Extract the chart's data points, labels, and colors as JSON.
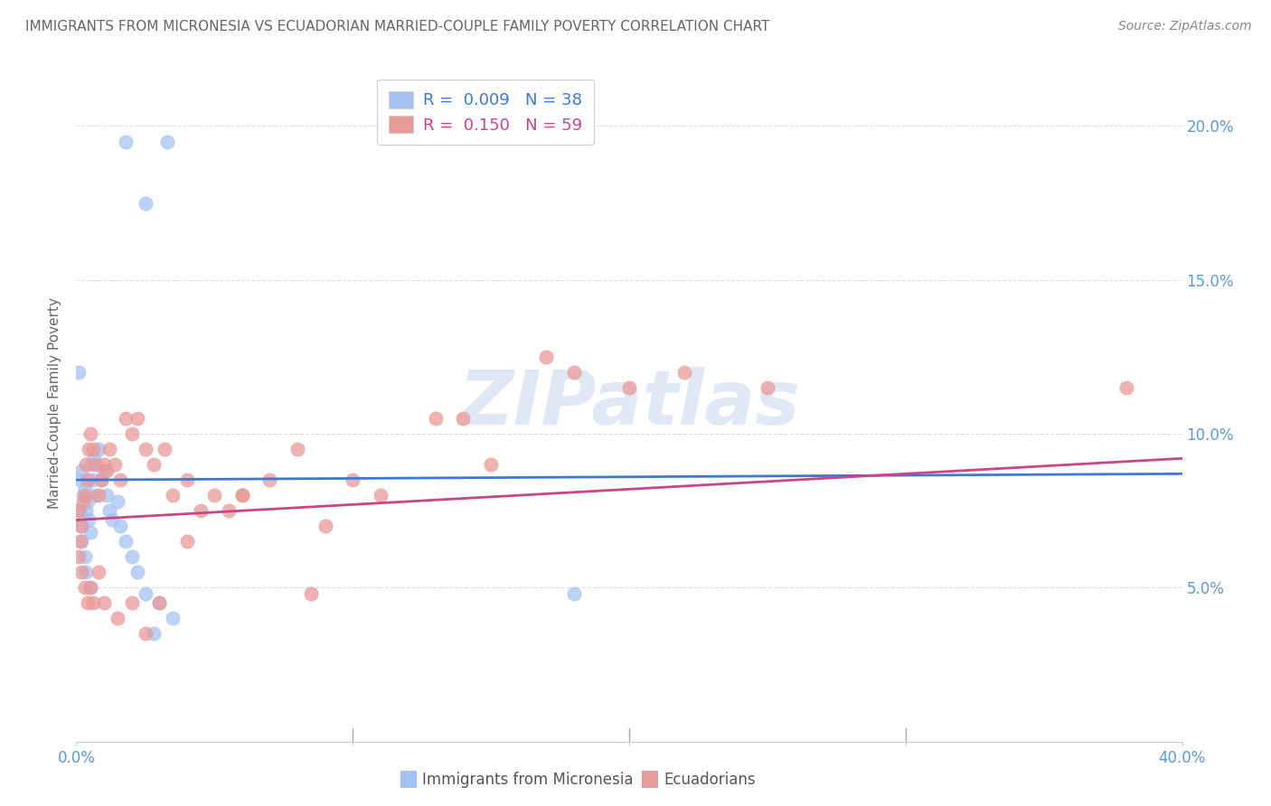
{
  "title": "IMMIGRANTS FROM MICRONESIA VS ECUADORIAN MARRIED-COUPLE FAMILY POVERTY CORRELATION CHART",
  "source": "Source: ZipAtlas.com",
  "ylabel": "Married-Couple Family Poverty",
  "legend_label1": "Immigrants from Micronesia",
  "legend_label2": "Ecuadorians",
  "blue_R": "0.009",
  "blue_N": "38",
  "pink_R": "0.150",
  "pink_N": "59",
  "blue_color": "#a4c2f4",
  "pink_color": "#ea9999",
  "blue_line_color": "#3c78d8",
  "pink_line_color": "#cc4488",
  "xlim": [
    0.0,
    40.0
  ],
  "ylim": [
    0.0,
    22.0
  ],
  "yticks": [
    5.0,
    10.0,
    15.0,
    20.0
  ],
  "xticks": [
    0.0,
    10.0,
    20.0,
    30.0,
    40.0
  ],
  "blue_line_y0": 8.5,
  "blue_line_y1": 8.7,
  "pink_line_y0": 7.2,
  "pink_line_y1": 9.2,
  "blue_scatter_x": [
    1.8,
    3.3,
    2.5,
    0.1,
    0.2,
    0.15,
    0.3,
    0.25,
    0.4,
    0.35,
    0.45,
    0.5,
    0.55,
    0.6,
    0.65,
    0.7,
    0.8,
    0.9,
    1.0,
    1.1,
    1.2,
    1.3,
    1.5,
    1.6,
    1.8,
    2.0,
    2.2,
    2.5,
    3.0,
    3.5,
    0.1,
    0.15,
    0.2,
    0.3,
    0.35,
    0.5,
    18.0,
    2.8
  ],
  "blue_scatter_y": [
    19.5,
    19.5,
    17.5,
    12.0,
    8.8,
    8.5,
    8.2,
    8.0,
    7.8,
    7.5,
    7.2,
    6.8,
    9.0,
    8.5,
    9.2,
    8.0,
    9.5,
    8.5,
    8.8,
    8.0,
    7.5,
    7.2,
    7.8,
    7.0,
    6.5,
    6.0,
    5.5,
    4.8,
    4.5,
    4.0,
    7.5,
    7.0,
    6.5,
    6.0,
    5.5,
    5.0,
    4.8,
    3.5
  ],
  "pink_scatter_x": [
    0.1,
    0.15,
    0.2,
    0.25,
    0.3,
    0.35,
    0.4,
    0.45,
    0.5,
    0.6,
    0.7,
    0.8,
    0.9,
    1.0,
    1.1,
    1.2,
    1.4,
    1.6,
    1.8,
    2.0,
    2.2,
    2.5,
    2.8,
    3.2,
    3.5,
    4.0,
    4.5,
    5.0,
    5.5,
    6.0,
    7.0,
    8.0,
    9.0,
    10.0,
    11.0,
    13.0,
    14.0,
    15.0,
    17.0,
    18.0,
    20.0,
    22.0,
    25.0,
    38.0,
    0.1,
    0.2,
    0.3,
    0.4,
    0.5,
    0.6,
    0.8,
    1.0,
    1.5,
    2.0,
    2.5,
    3.0,
    4.0,
    6.0,
    8.5
  ],
  "pink_scatter_y": [
    7.5,
    6.5,
    7.0,
    7.8,
    8.0,
    9.0,
    8.5,
    9.5,
    10.0,
    9.5,
    9.0,
    8.0,
    8.5,
    9.0,
    8.8,
    9.5,
    9.0,
    8.5,
    10.5,
    10.0,
    10.5,
    9.5,
    9.0,
    9.5,
    8.0,
    8.5,
    7.5,
    8.0,
    7.5,
    8.0,
    8.5,
    9.5,
    7.0,
    8.5,
    8.0,
    10.5,
    10.5,
    9.0,
    12.5,
    12.0,
    11.5,
    12.0,
    11.5,
    11.5,
    6.0,
    5.5,
    5.0,
    4.5,
    5.0,
    4.5,
    5.5,
    4.5,
    4.0,
    4.5,
    3.5,
    4.5,
    6.5,
    8.0,
    4.8
  ],
  "bg_color": "#ffffff",
  "grid_color": "#dddddd",
  "title_color": "#666666",
  "axis_label_color": "#666666",
  "tick_color": "#5b9bd5",
  "watermark_color": "#e0e8f5"
}
